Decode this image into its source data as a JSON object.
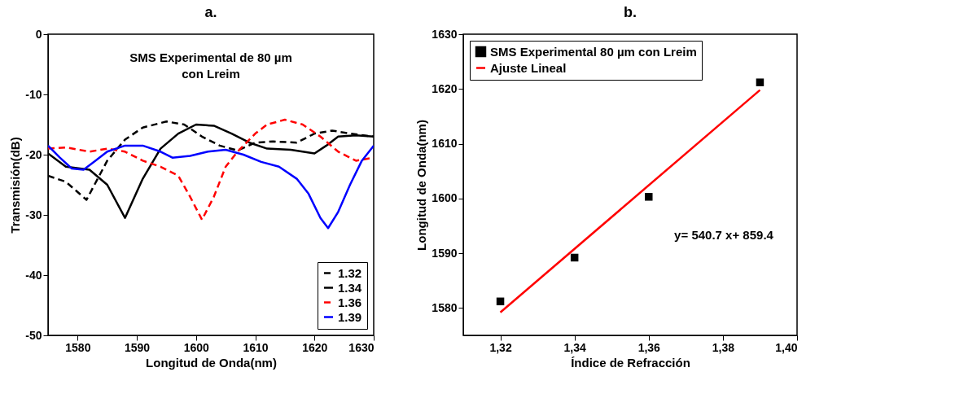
{
  "chart_data": [
    {
      "type": "line",
      "title": "a.",
      "xlabel": "Longitud de Onda(nm)",
      "ylabel": "Transmisión(dB)",
      "xlim": [
        1575,
        1630
      ],
      "ylim": [
        -50,
        0
      ],
      "xticks": [
        1580,
        1590,
        1600,
        1610,
        1620,
        1630
      ],
      "yticks": [
        -50,
        -40,
        -30,
        -20,
        -10,
        0
      ],
      "legend": "bottom right",
      "annotations": [
        "SMS Experimental de  80 µm\ncon Lreim"
      ],
      "series": [
        {
          "name": "1.32",
          "color": "#000000",
          "line_style": "dashed",
          "x": [
            1575,
            1578,
            1581.5,
            1585,
            1588,
            1591,
            1595,
            1598,
            1601,
            1604,
            1607,
            1610,
            1613,
            1617,
            1620,
            1623,
            1626,
            1630
          ],
          "values": [
            -23.5,
            -24.5,
            -27.5,
            -21,
            -17.5,
            -15.5,
            -14.5,
            -15,
            -17,
            -18.5,
            -19.3,
            -18,
            -17.8,
            -18,
            -16.5,
            -16,
            -16.5,
            -17
          ]
        },
        {
          "name": "1.34",
          "color": "#000000",
          "line_style": "solid",
          "x": [
            1575,
            1578,
            1582,
            1585,
            1588,
            1591,
            1594,
            1597,
            1600,
            1603,
            1606,
            1609,
            1612,
            1616,
            1620,
            1622,
            1624,
            1627,
            1630
          ],
          "values": [
            -19.8,
            -22,
            -22.5,
            -25,
            -30.5,
            -24,
            -19,
            -16.5,
            -15,
            -15.2,
            -16.5,
            -18,
            -19,
            -19.2,
            -19.8,
            -18.5,
            -17,
            -16.8,
            -17
          ]
        },
        {
          "name": "1.36",
          "color": "#ff0000",
          "line_style": "dashed",
          "x": [
            1575,
            1578,
            1582,
            1585,
            1588,
            1591,
            1594,
            1597,
            1599,
            1601,
            1603,
            1605,
            1607,
            1610,
            1612,
            1615,
            1618,
            1621,
            1624,
            1627,
            1630
          ],
          "values": [
            -19,
            -18.8,
            -19.5,
            -19,
            -19.5,
            -21,
            -22,
            -23.5,
            -27,
            -30.8,
            -27,
            -22,
            -19.5,
            -16.5,
            -15,
            -14.2,
            -15,
            -17,
            -19.5,
            -21,
            -20.5
          ]
        },
        {
          "name": "1.39",
          "color": "#0000ff",
          "line_style": "solid",
          "x": [
            1575,
            1577,
            1579,
            1581,
            1583,
            1585,
            1588,
            1591,
            1594,
            1596,
            1599,
            1602,
            1605,
            1608,
            1611,
            1614,
            1617,
            1619,
            1621,
            1622.3,
            1624,
            1626,
            1628,
            1630
          ],
          "values": [
            -18.5,
            -20.5,
            -22.3,
            -22.5,
            -21,
            -19.5,
            -18.5,
            -18.5,
            -19.5,
            -20.5,
            -20.2,
            -19.5,
            -19.2,
            -20,
            -21.2,
            -22,
            -24,
            -26.5,
            -30.5,
            -32.2,
            -29.5,
            -25,
            -21,
            -18.5
          ]
        }
      ]
    },
    {
      "type": "scatter",
      "title": "b.",
      "xlabel": "Índice de Refracción",
      "ylabel": "Longitud  de Onda(nm)",
      "xlim": [
        1.31,
        1.4
      ],
      "ylim": [
        1575,
        1630
      ],
      "xticks": [
        {
          "value": 1.32,
          "label": "1,32"
        },
        {
          "value": 1.34,
          "label": "1,34"
        },
        {
          "value": 1.36,
          "label": "1,36"
        },
        {
          "value": 1.38,
          "label": "1,38"
        },
        {
          "value": 1.4,
          "label": "1,40"
        }
      ],
      "yticks": [
        1580,
        1590,
        1600,
        1610,
        1620,
        1630
      ],
      "legend": "top left",
      "annotations": [
        "y= 540.7 x+ 859.4"
      ],
      "series": [
        {
          "name": "SMS Experimental 80 µm con Lreim",
          "color": "#000000",
          "marker": "square",
          "x": [
            1.32,
            1.34,
            1.36,
            1.39
          ],
          "values": [
            1581.2,
            1589.2,
            1600.3,
            1621.2
          ]
        },
        {
          "name": "Ajuste Lineal",
          "type": "line",
          "color": "#ff0000",
          "x": [
            1.32,
            1.39
          ],
          "values": [
            1579.2,
            1619.8
          ]
        }
      ]
    }
  ]
}
